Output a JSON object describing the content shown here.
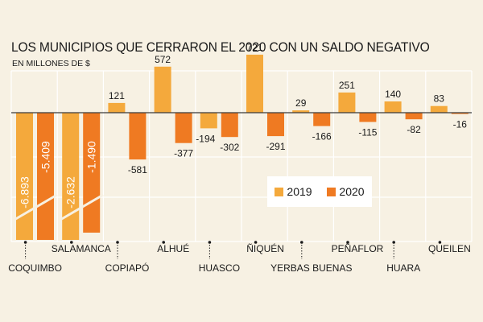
{
  "title": "LOS MUNICIPIOS QUE CERRARON EL 2020 CON UN SALDO NEGATIVO",
  "subtitle": "EN MILLONES DE $",
  "colors": {
    "y2019": "#f4a93c",
    "y2020": "#ef7a22",
    "background": "#f7f1e3",
    "grid": "#ffffff"
  },
  "chart_data": {
    "type": "bar",
    "categories": [
      "COQUIMBO",
      "SALAMANCA",
      "COPIAPÓ",
      "ALHUÉ",
      "HUASCO",
      "ÑIQUÉN",
      "YERBAS BUENAS",
      "PEÑAFLOR",
      "HUARA",
      "QUEILEN"
    ],
    "series": [
      {
        "name": "2019",
        "values": [
          -6893,
          -2632,
          121,
          572,
          -194,
          721,
          29,
          251,
          140,
          83
        ],
        "labels": [
          "-6.893",
          "-2.632",
          "121",
          "572",
          "-194",
          "721",
          "29",
          "251",
          "140",
          "83"
        ]
      },
      {
        "name": "2020",
        "values": [
          -5409,
          -1490,
          -581,
          -377,
          -302,
          -291,
          -166,
          -115,
          -82,
          -16
        ],
        "labels": [
          "-5.409",
          "-1.490",
          "-581",
          "-377",
          "-302",
          "-291",
          "-166",
          "-115",
          "-82",
          "-16"
        ]
      }
    ],
    "axis_break": "bars for COQUIMBO truncated with a diagonal break",
    "grid": true,
    "legend_position": "center-right"
  }
}
